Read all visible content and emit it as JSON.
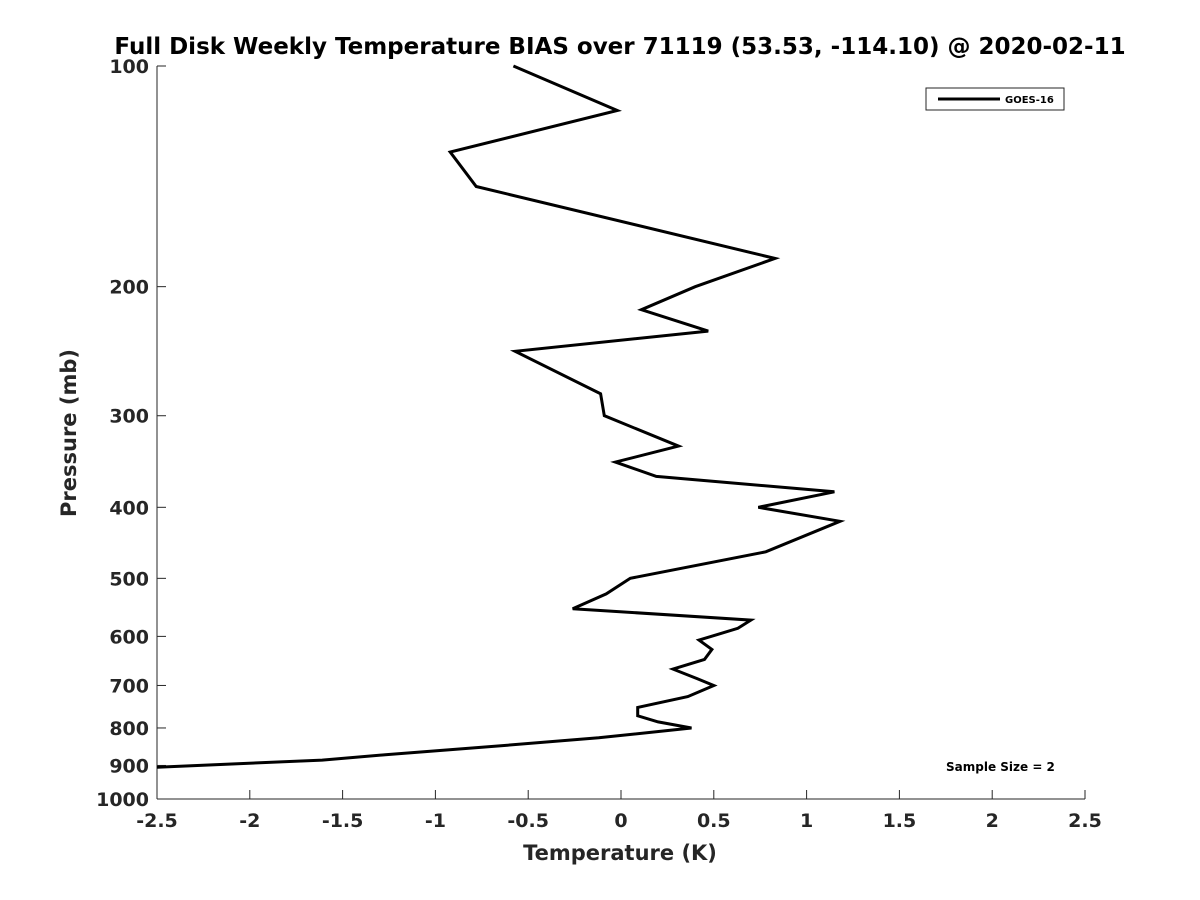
{
  "chart_data": {
    "type": "line",
    "title": "Full Disk Weekly Temperature BIAS over 71119 (53.53, -114.10) @ 2020-02-11",
    "xlabel": "Temperature (K)",
    "ylabel": "Pressure (mb)",
    "xlim": [
      -2.5,
      2.5
    ],
    "ylim": [
      1000,
      100
    ],
    "y_scale": "log",
    "y_reversed": true,
    "x_ticks": [
      "-2.5",
      "-2",
      "-1.5",
      "-1",
      "-0.5",
      "0",
      "0.5",
      "1",
      "1.5",
      "2",
      "2.5"
    ],
    "y_ticks": [
      "100",
      "200",
      "300",
      "400",
      "500",
      "600",
      "700",
      "800",
      "900",
      "1000"
    ],
    "grid": false,
    "legend_position": "top-right",
    "annotation": "Sample Size = 2",
    "line_color": "#000000",
    "series": [
      {
        "name": "GOES-16",
        "points": [
          {
            "x": -0.58,
            "y": 100
          },
          {
            "x": -0.02,
            "y": 115
          },
          {
            "x": -0.92,
            "y": 131
          },
          {
            "x": -0.78,
            "y": 146
          },
          {
            "x": 0.83,
            "y": 183
          },
          {
            "x": 0.4,
            "y": 200
          },
          {
            "x": 0.11,
            "y": 215
          },
          {
            "x": 0.47,
            "y": 230
          },
          {
            "x": -0.57,
            "y": 245
          },
          {
            "x": -0.11,
            "y": 280
          },
          {
            "x": -0.09,
            "y": 300
          },
          {
            "x": 0.31,
            "y": 330
          },
          {
            "x": -0.03,
            "y": 347
          },
          {
            "x": 0.19,
            "y": 363
          },
          {
            "x": 1.15,
            "y": 381
          },
          {
            "x": 0.74,
            "y": 400
          },
          {
            "x": 1.18,
            "y": 418
          },
          {
            "x": 0.78,
            "y": 460
          },
          {
            "x": 0.05,
            "y": 500
          },
          {
            "x": -0.08,
            "y": 525
          },
          {
            "x": -0.26,
            "y": 550
          },
          {
            "x": 0.7,
            "y": 570
          },
          {
            "x": 0.63,
            "y": 585
          },
          {
            "x": 0.42,
            "y": 607
          },
          {
            "x": 0.49,
            "y": 625
          },
          {
            "x": 0.45,
            "y": 645
          },
          {
            "x": 0.28,
            "y": 665
          },
          {
            "x": 0.41,
            "y": 685
          },
          {
            "x": 0.5,
            "y": 700
          },
          {
            "x": 0.36,
            "y": 725
          },
          {
            "x": 0.09,
            "y": 750
          },
          {
            "x": 0.09,
            "y": 770
          },
          {
            "x": 0.2,
            "y": 785
          },
          {
            "x": 0.38,
            "y": 800
          },
          {
            "x": -0.12,
            "y": 825
          },
          {
            "x": -0.75,
            "y": 850
          },
          {
            "x": -1.27,
            "y": 870
          },
          {
            "x": -1.61,
            "y": 885
          },
          {
            "x": -2.5,
            "y": 905
          }
        ]
      }
    ]
  }
}
